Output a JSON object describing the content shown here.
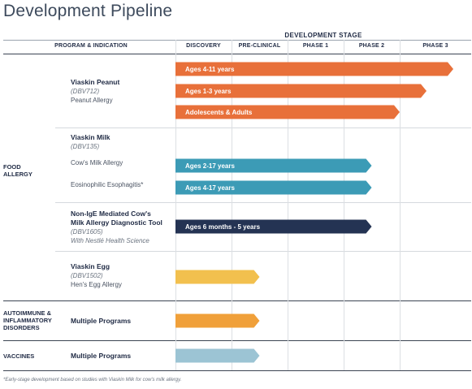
{
  "title": "Development Pipeline",
  "header": {
    "program_col": "PROGRAM & INDICATION",
    "stage_group": "DEVELOPMENT STAGE",
    "stages": [
      "DISCOVERY",
      "PRE-CLINICAL",
      "PHASE 1",
      "PHASE 2",
      "PHASE 3"
    ]
  },
  "categories": {
    "food": "FOOD\nALLERGY",
    "autoimmune": "AUTOIMMUNE &\nINFLAMMATORY\nDISORDERS",
    "vaccines": "VACCINES"
  },
  "programs": {
    "peanut": {
      "name": "Viaskin Peanut",
      "code": "(DBV712)",
      "indication": "Peanut Allergy"
    },
    "milk": {
      "name": "Viaskin Milk",
      "code": "(DBV135)",
      "ind1": "Cow's Milk Allergy",
      "ind2": "Eosinophilic Esophagitis*"
    },
    "nonige": {
      "name1": "Non-IgE Mediated Cow's",
      "name2": "Milk Allergy Diagnostic Tool",
      "code": "(DBV1605)",
      "partner": "With Nestlé Health Science"
    },
    "egg": {
      "name": "Viaskin Egg",
      "code": "(DBV1502)",
      "indication": "Hen's Egg Allergy"
    },
    "autoimmune": {
      "name": "Multiple Programs"
    },
    "vaccines": {
      "name": "Multiple Programs"
    }
  },
  "footnote": "*Early-stage development based on studies with Viaskin Milk for cow's milk allergy.",
  "chart_data": {
    "type": "bar",
    "orientation": "horizontal",
    "stages": [
      "DISCOVERY",
      "PRE-CLINICAL",
      "PHASE 1",
      "PHASE 2",
      "PHASE 3"
    ],
    "bars": [
      {
        "label": "Ages 4-11 years",
        "program": "Viaskin Peanut",
        "end_stage": 5,
        "color": "#e8703a"
      },
      {
        "label": "Ages 1-3 years",
        "program": "Viaskin Peanut",
        "end_stage": 4.5,
        "color": "#e8703a"
      },
      {
        "label": "Adolescents & Adults",
        "program": "Viaskin Peanut",
        "end_stage": 4,
        "color": "#e8703a"
      },
      {
        "label": "Ages 2-17 years",
        "program": "Viaskin Milk",
        "end_stage": 3.5,
        "color": "#3c9bb6"
      },
      {
        "label": "Ages 4-17 years",
        "program": "Viaskin Milk",
        "end_stage": 3.5,
        "color": "#3c9bb6"
      },
      {
        "label": "Ages 6 months - 5 years",
        "program": "Non-IgE Mediated Cow's Milk Allergy Diagnostic Tool",
        "end_stage": 3.5,
        "color": "#243353"
      },
      {
        "label": "",
        "program": "Viaskin Egg",
        "end_stage": 1.5,
        "color": "#f2c04e"
      },
      {
        "label": "",
        "program": "Autoimmune & Inflammatory Disorders",
        "end_stage": 1.5,
        "color": "#f0a03a"
      },
      {
        "label": "",
        "program": "Vaccines",
        "end_stage": 1.5,
        "color": "#9cc4d4"
      }
    ]
  }
}
